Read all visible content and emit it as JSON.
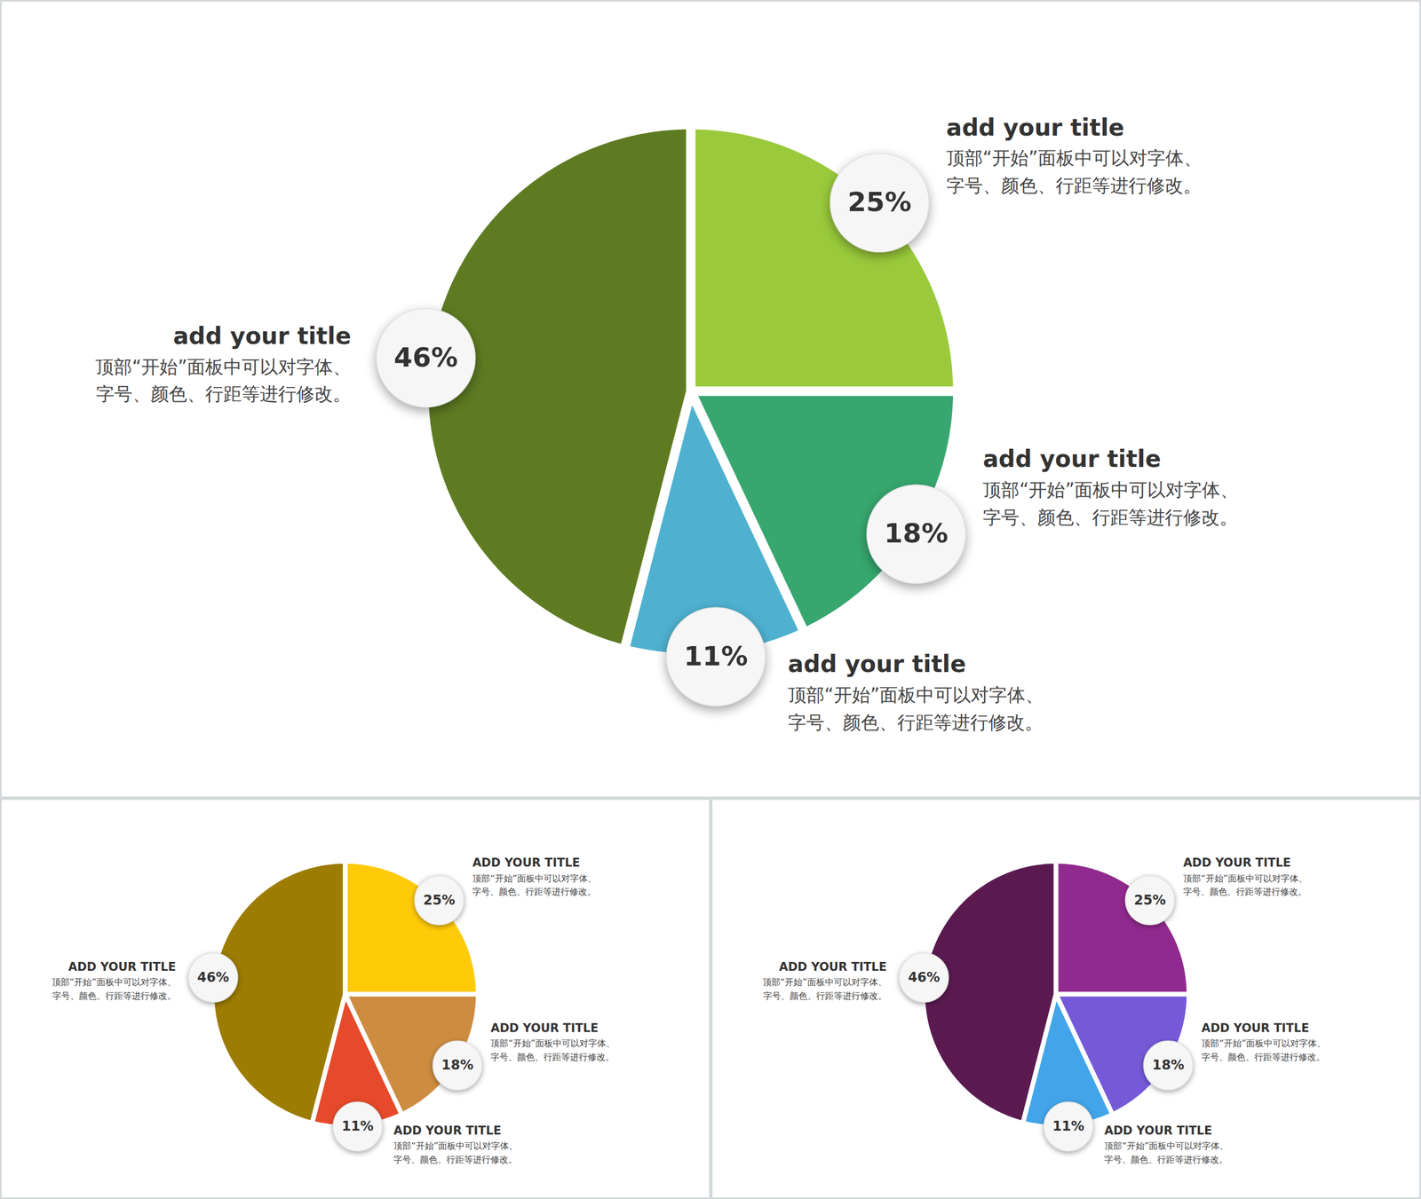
{
  "chart_data": [
    {
      "type": "pie",
      "categories": [
        "add your title",
        "add your title",
        "add your title",
        "add your title"
      ],
      "descriptions": [
        [
          "顶部“开始”面板中可以对字体、",
          "字号、颜色、行距等进行修改。"
        ],
        [
          "顶部“开始”面板中可以对字体、",
          "字号、颜色、行距等进行修改。"
        ],
        [
          "顶部“开始”面板中可以对字体、",
          "字号、颜色、行距等进行修改。"
        ],
        [
          "顶部“开始”面板中可以对字体、",
          "字号、颜色、行距等进行修改。"
        ]
      ],
      "values": [
        25,
        18,
        11,
        46
      ],
      "value_labels": [
        "25%",
        "18%",
        "11%",
        "46%"
      ],
      "colors": [
        "#9aca3c",
        "#37a76f",
        "#4fb1cf",
        "#5e7b22"
      ],
      "data_labels": true
    },
    {
      "type": "pie",
      "categories": [
        "ADD YOUR TITLE",
        "ADD YOUR TITLE",
        "ADD YOUR TITLE",
        "ADD YOUR TITLE"
      ],
      "descriptions": [
        [
          "顶部“开始”面板中可以对字体、",
          "字号、颜色、行距等进行修改。"
        ],
        [
          "顶部“开始”面板中可以对字体、",
          "字号、颜色、行距等进行修改。"
        ],
        [
          "顶部“开始”面板中可以对字体、",
          "字号、颜色、行距等进行修改。"
        ],
        [
          "顶部“开始”面板中可以对字体、",
          "字号、颜色、行距等进行修改。"
        ]
      ],
      "values": [
        25,
        18,
        11,
        46
      ],
      "value_labels": [
        "25%",
        "18%",
        "11%",
        "46%"
      ],
      "colors": [
        "#ffca08",
        "#cd8c40",
        "#e64a2a",
        "#9c7c02"
      ],
      "data_labels": true
    },
    {
      "type": "pie",
      "categories": [
        "ADD YOUR TITLE",
        "ADD YOUR TITLE",
        "ADD YOUR TITLE",
        "ADD YOUR TITLE"
      ],
      "descriptions": [
        [
          "顶部“开始”面板中可以对字体、",
          "字号、颜色、行距等进行修改。"
        ],
        [
          "顶部“开始”面板中可以对字体、",
          "字号、颜色、行距等进行修改。"
        ],
        [
          "顶部“开始”面板中可以对字体、",
          "字号、颜色、行距等进行修改。"
        ],
        [
          "顶部“开始”面板中可以对字体、",
          "字号、颜色、行距等进行修改。"
        ]
      ],
      "values": [
        25,
        18,
        11,
        46
      ],
      "value_labels": [
        "25%",
        "18%",
        "11%",
        "46%"
      ],
      "colors": [
        "#912a8f",
        "#7559d8",
        "#43a5e9",
        "#5a1a50"
      ],
      "data_labels": true
    }
  ]
}
